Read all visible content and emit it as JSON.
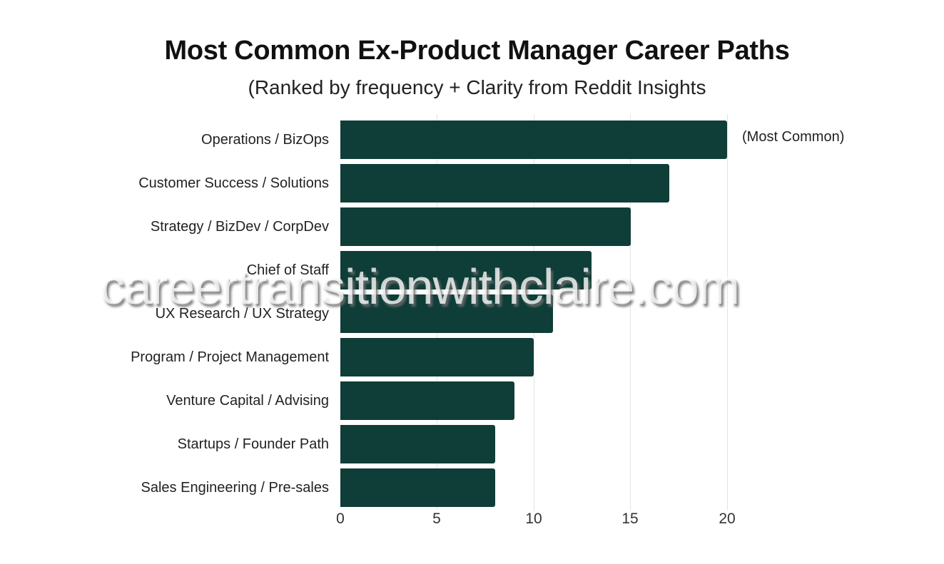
{
  "chart_data": {
    "type": "bar",
    "orientation": "horizontal",
    "title": "Most Common Ex-Product Manager Career Paths",
    "subtitle": "(Ranked by frequency + Clarity from Reddit Insights",
    "categories": [
      "Operations / BizOps",
      "Customer Success / Solutions",
      "Strategy / BizDev / CorpDev",
      "Chief of Staff",
      "UX Research / UX Strategy",
      "Program / Project Management",
      "Venture Capital / Advising",
      "Startups / Founder Path",
      "Sales Engineering / Pre-sales"
    ],
    "values": [
      20,
      17,
      15,
      13,
      11,
      10,
      9,
      8,
      8
    ],
    "xlabel": "",
    "ylabel": "",
    "xlim": [
      0,
      20
    ],
    "xticks": [
      "0",
      "5",
      "10",
      "15",
      "20"
    ],
    "grid": "vertical",
    "annotations": [
      {
        "category": "Operations / BizOps",
        "text": "(Most Common)"
      }
    ],
    "bar_color": "#0f3d37"
  },
  "watermark": "careertransitionwithclaire.com"
}
